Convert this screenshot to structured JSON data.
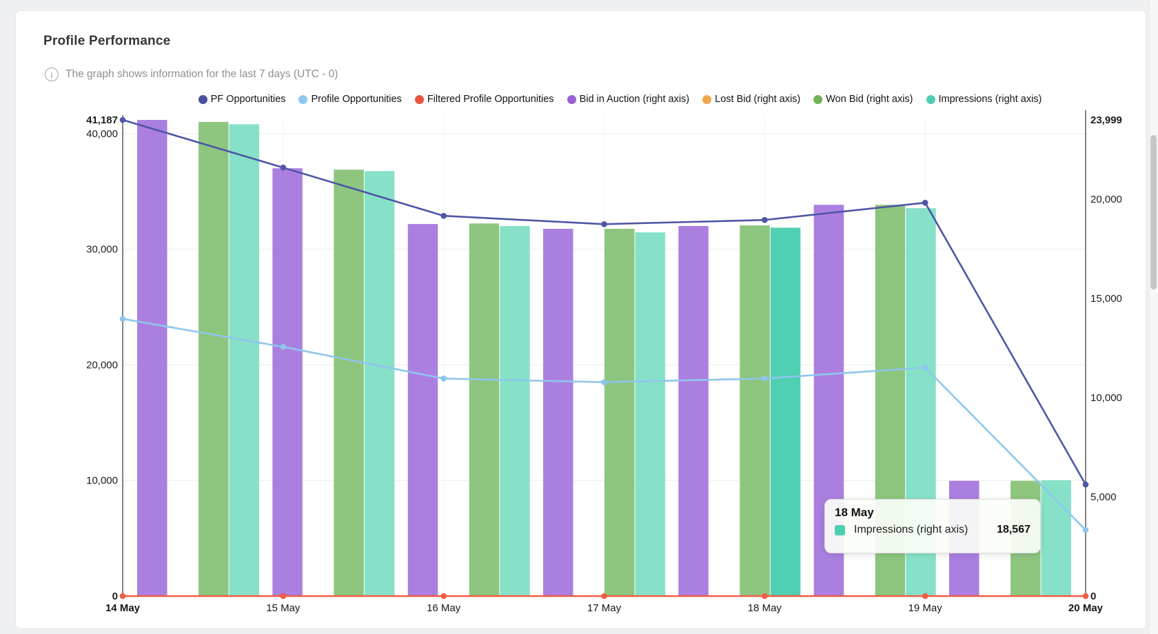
{
  "card": {
    "title": "Profile Performance",
    "subtitle": "The graph shows information for the last 7 days (UTC - 0)",
    "info_icon_glyph": "i"
  },
  "legend": {
    "items": [
      {
        "label": "PF Opportunities",
        "color": "#4a50a0"
      },
      {
        "label": "Profile Opportunities",
        "color": "#8fc7ee"
      },
      {
        "label": "Filtered Profile Opportunities",
        "color": "#eb5540"
      },
      {
        "label": "Bid in Auction (right axis)",
        "color": "#9d5fd4"
      },
      {
        "label": "Lost Bid (right axis)",
        "color": "#f0a84e"
      },
      {
        "label": "Won Bid (right axis)",
        "color": "#72b356"
      },
      {
        "label": "Impressions (right axis)",
        "color": "#4fcdb0"
      }
    ]
  },
  "chart_data": {
    "type": "combo-bar-line",
    "categories": [
      "14 May",
      "15 May",
      "16 May",
      "17 May",
      "18 May",
      "19 May",
      "20 May"
    ],
    "x_bold_indices": [
      0,
      6
    ],
    "left_axis": {
      "max": 41187,
      "ticks": [
        {
          "label": "41,187",
          "value": 41187,
          "bold": true,
          "grid": false
        },
        {
          "label": "40,000",
          "value": 40000,
          "bold": false,
          "grid": true
        },
        {
          "label": "30,000",
          "value": 30000,
          "bold": false,
          "grid": true
        },
        {
          "label": "20,000",
          "value": 20000,
          "bold": false,
          "grid": true
        },
        {
          "label": "10,000",
          "value": 10000,
          "bold": false,
          "grid": true
        },
        {
          "label": "0",
          "value": 0,
          "bold": true,
          "grid": false
        }
      ]
    },
    "right_axis": {
      "max": 23999,
      "ticks": [
        {
          "label": "23,999",
          "value": 23999,
          "bold": true
        },
        {
          "label": "20,000",
          "value": 20000,
          "bold": false
        },
        {
          "label": "15,000",
          "value": 15000,
          "bold": false
        },
        {
          "label": "10,000",
          "value": 10000,
          "bold": false
        },
        {
          "label": "5,000",
          "value": 5000,
          "bold": false
        },
        {
          "label": "0",
          "value": 0,
          "bold": true
        }
      ]
    },
    "line_series": [
      {
        "name": "PF Opportunities",
        "axis": "left",
        "color": "#4d56a6",
        "values": [
          41187,
          37060,
          32890,
          32170,
          32530,
          34020,
          9650
        ]
      },
      {
        "name": "Profile Opportunities",
        "axis": "left",
        "color": "#8ec6ec",
        "values": [
          23980,
          21560,
          18820,
          18500,
          18820,
          19770,
          5720
        ]
      },
      {
        "name": "Filtered Profile Opportunities",
        "axis": "left",
        "color": "#f05c44",
        "values": [
          0,
          0,
          0,
          0,
          0,
          0,
          0
        ]
      }
    ],
    "bar_series": [
      {
        "name": "Bid in Auction (right axis)",
        "axis": "right",
        "color": "#ab7fe0",
        "values": [
          23999,
          21560,
          18750,
          18510,
          18650,
          19720,
          5810
        ]
      },
      {
        "name": "Lost Bid (right axis)",
        "axis": "right",
        "color": "#f2b25c",
        "values": [
          0,
          0,
          0,
          0,
          0,
          0,
          0
        ]
      },
      {
        "name": "Won Bid (right axis)",
        "axis": "right",
        "color": "#8ec680",
        "values": [
          23900,
          21490,
          18780,
          18510,
          18680,
          19720,
          5810
        ]
      },
      {
        "name": "Impressions (right axis)",
        "axis": "right",
        "color": "#87e1c8",
        "highlight_color": "#50cfb2",
        "values": [
          23780,
          21420,
          18650,
          18330,
          18567,
          19550,
          5840
        ]
      }
    ],
    "highlight": {
      "series": "Impressions (right axis)",
      "category": "18 May",
      "index": 4
    }
  },
  "tooltip": {
    "title": "18 May",
    "series": "Impressions (right axis)",
    "value": "18,567",
    "swatch_color": "#4ecfb3"
  }
}
